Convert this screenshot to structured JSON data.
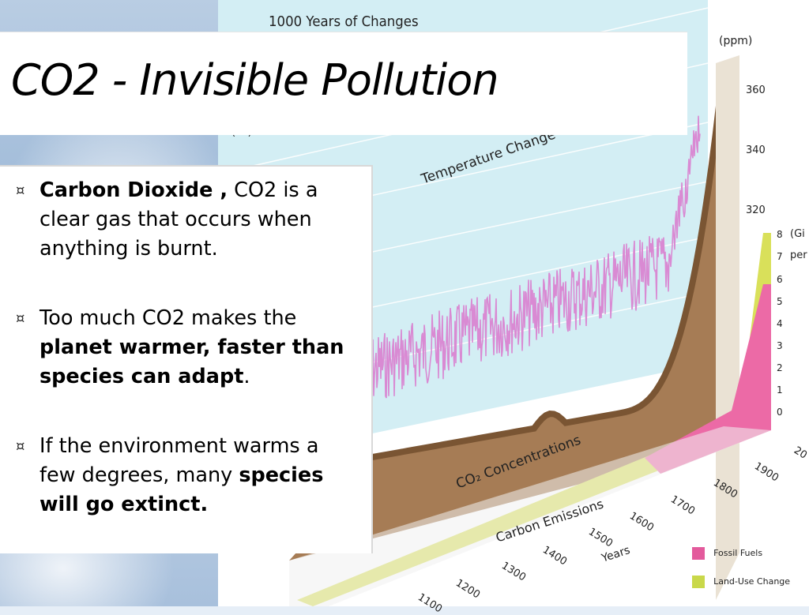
{
  "slide": {
    "title": "CO2 - Invisible Pollution",
    "bullets": [
      {
        "bold_lead": "Carbon Dioxide ,",
        "normal": " CO2 is a clear gas that occurs when anything is burnt."
      },
      {
        "normal_lead": "Too much CO2 makes the ",
        "bold": "planet warmer, faster than species can adapt",
        "normal_tail": "."
      },
      {
        "normal_lead": "If the environment warms a few degrees, many ",
        "bold": "species will go extinct."
      }
    ],
    "bullet_symbol": "¤"
  },
  "infographic": {
    "title": "1000 Years of Changes",
    "co2_unit": "(ppm)",
    "co2_ticks": [
      "360",
      "340",
      "320"
    ],
    "temp_unit_fragment": "(°C)",
    "temperature_label": "Temperature Change",
    "co2_concentrations_label": "CO₂ Concentrations",
    "emissions_label": "Carbon Emissions",
    "emissions_ticks": [
      "8",
      "7",
      "6",
      "5",
      "4",
      "3",
      "2",
      "1",
      "0"
    ],
    "emissions_unit_fragment_1": "(Gi",
    "emissions_unit_fragment_2": "per",
    "years_label": "Years",
    "year_ticks": [
      "1100",
      "1200",
      "1300",
      "1400",
      "1500",
      "1600",
      "1700",
      "1800",
      "1900",
      "20"
    ],
    "legend": [
      {
        "label": "Fossil Fuels",
        "color": "#e35a9c"
      },
      {
        "label": "Land-Use Change",
        "color": "#c9d84a"
      }
    ],
    "colors": {
      "temperature_line": "#d88ad0",
      "co2_surface": "#a07850",
      "wall": "#cfeef4"
    }
  }
}
